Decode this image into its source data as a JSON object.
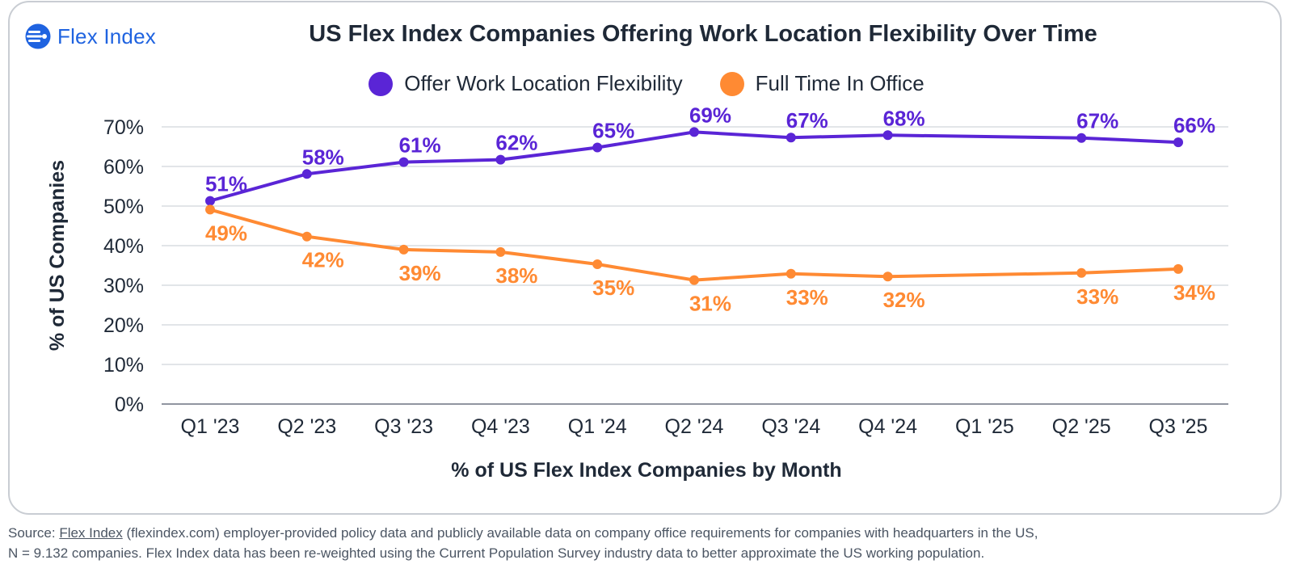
{
  "brand": {
    "logo_text": "Flex Index",
    "logo_color": "#1f63e0"
  },
  "chart_data": {
    "type": "line",
    "title": "US Flex Index Companies Offering Work Location Flexibility Over Time",
    "xlabel": "% of US Flex Index Companies by Month",
    "ylabel": "% of US Companies",
    "x": [
      "Q1 '23",
      "Q2 '23",
      "Q3 '23",
      "Q4 '23",
      "Q1 '24",
      "Q2 '24",
      "Q3 '24",
      "Q4 '24",
      "Q1 '25",
      "Q2 '25",
      "Q3 '25"
    ],
    "ylim": [
      0,
      70
    ],
    "yticks": [
      0,
      10,
      20,
      30,
      40,
      50,
      60,
      70
    ],
    "ytick_labels": [
      "0%",
      "10%",
      "20%",
      "30%",
      "40%",
      "50%",
      "60%",
      "70%"
    ],
    "grid": true,
    "legend": "top-center",
    "series": [
      {
        "name": "Offer Work Location Flexibility",
        "color": "#5a25d6",
        "values": [
          51.3,
          58.1,
          61.1,
          61.7,
          64.8,
          68.7,
          67.3,
          67.9,
          null,
          67.2,
          66.1
        ],
        "labels": [
          "51%",
          "58%",
          "61%",
          "62%",
          "65%",
          "69%",
          "67%",
          "68%",
          null,
          "67%",
          "66%"
        ]
      },
      {
        "name": "Full Time In Office",
        "color": "#ff8a33",
        "values": [
          49.1,
          42.3,
          39.0,
          38.4,
          35.3,
          31.3,
          32.9,
          32.2,
          null,
          33.1,
          34.1
        ],
        "labels": [
          "49%",
          "42%",
          "39%",
          "38%",
          "35%",
          "31%",
          "33%",
          "32%",
          null,
          "33%",
          "34%"
        ]
      }
    ]
  },
  "footnote": {
    "prefix": "Source: ",
    "link": "Flex Index",
    "line1_rest": " (flexindex.com) employer-provided policy data and publicly available data on company office requirements for companies with headquarters in the US,",
    "line2": "N = 9.132 companies. Flex Index data has been re-weighted using the Current Population Survey industry data to better approximate the US working population."
  }
}
